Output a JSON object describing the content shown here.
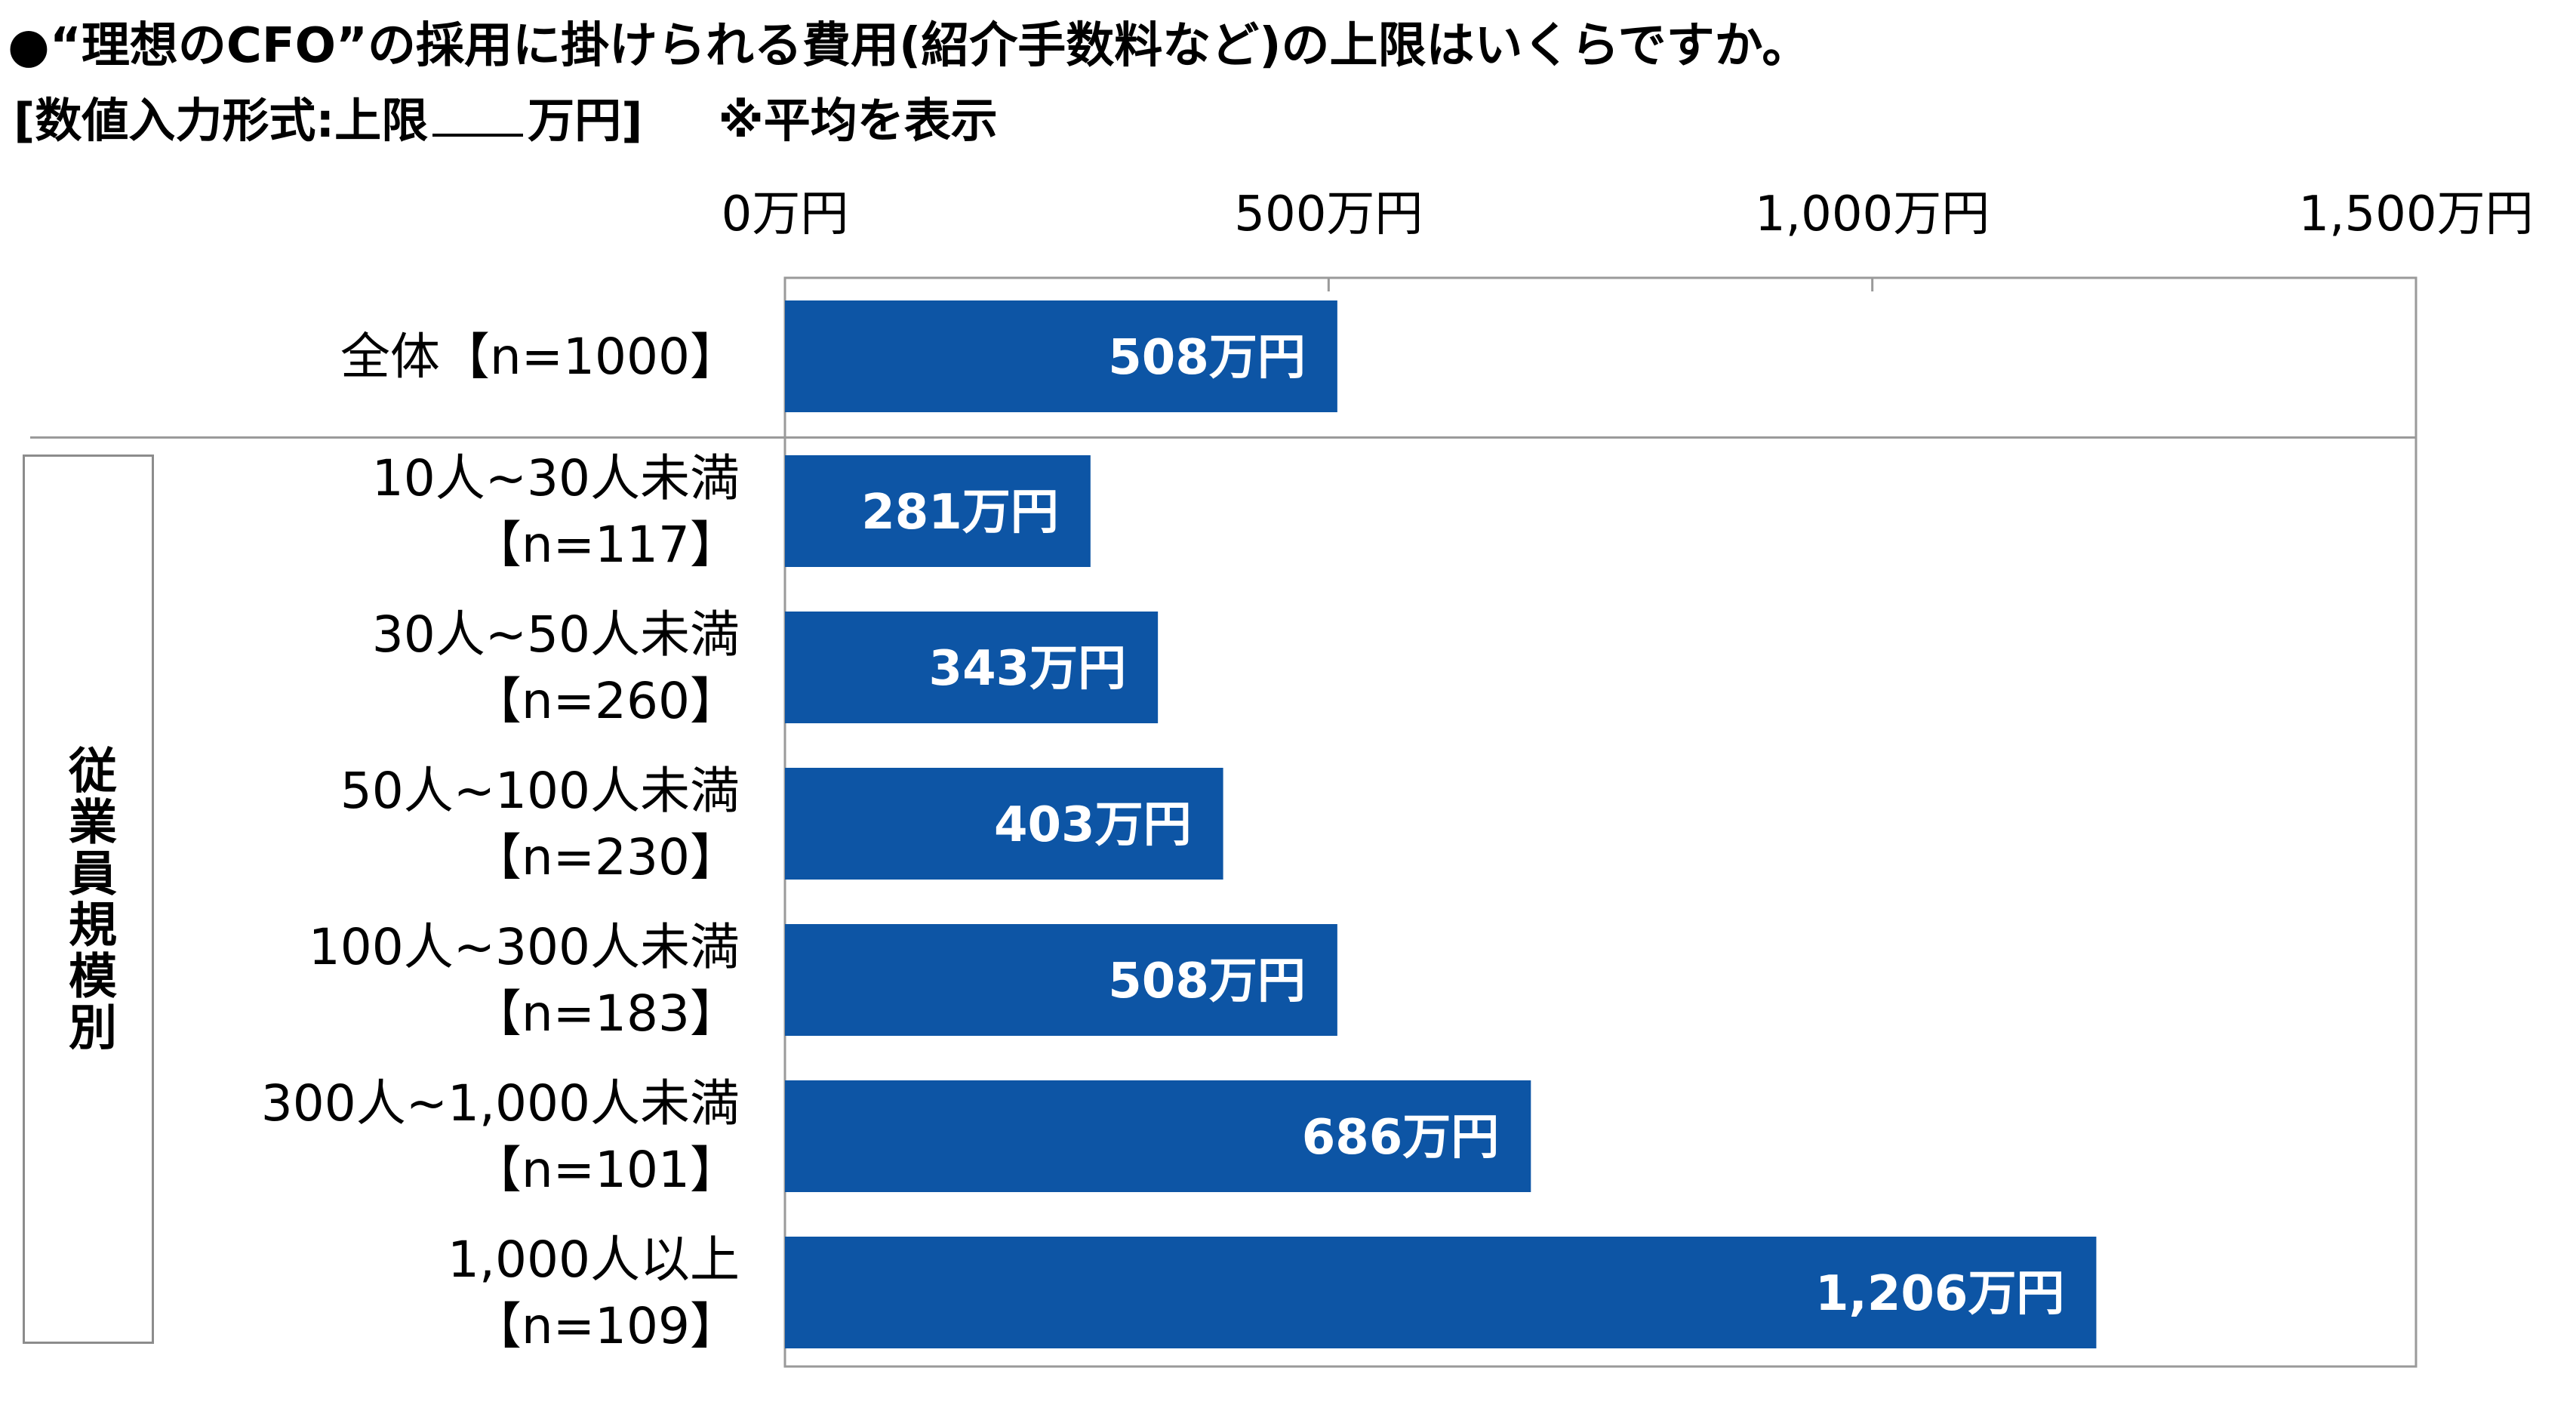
{
  "header": {
    "title": "●“理想のCFO”の採用に掛けられる費用(紹介手数料など)の上限はいくらですか。",
    "subtitle_prefix": "[数値入力形式:上限",
    "subtitle_suffix": "万円]",
    "subtitle_note": "※平均を表示"
  },
  "group_label": "従業員規模別",
  "colors": {
    "bar": "#0d55a5",
    "axis": "#9a9a9a",
    "frame": "#8c8c8c"
  },
  "chart_data": {
    "type": "bar",
    "orientation": "horizontal",
    "xlim": [
      0,
      1500
    ],
    "xticks": [
      0,
      500,
      1000,
      1500
    ],
    "xtick_labels": [
      "0万円",
      "500万円",
      "1,000万円",
      "1,500万円"
    ],
    "categories": [
      [
        "全体【n=1000】"
      ],
      [
        "10人~30人未満",
        "【n=117】"
      ],
      [
        "30人~50人未満",
        "【n=260】"
      ],
      [
        "50人~100人未満",
        "【n=230】"
      ],
      [
        "100人~300人未満",
        "【n=183】"
      ],
      [
        "300人~1,000人未満",
        "【n=101】"
      ],
      [
        "1,000人以上",
        "【n=109】"
      ]
    ],
    "values": [
      508,
      281,
      343,
      403,
      508,
      686,
      1206
    ],
    "data_labels": [
      "508万円",
      "281万円",
      "343万円",
      "403万円",
      "508万円",
      "686万円",
      "1,206万円"
    ],
    "grid": "x-axis ticks only",
    "legend": "none"
  }
}
